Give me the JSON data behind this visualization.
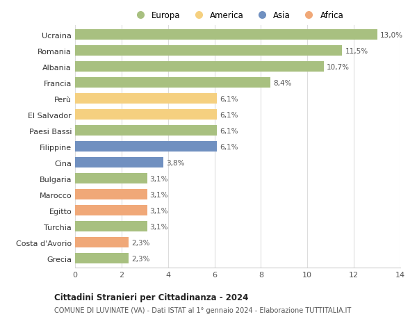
{
  "countries": [
    "Ucraina",
    "Romania",
    "Albania",
    "Francia",
    "Perù",
    "El Salvador",
    "Paesi Bassi",
    "Filippine",
    "Cina",
    "Bulgaria",
    "Marocco",
    "Egitto",
    "Turchia",
    "Costa d'Avorio",
    "Grecia"
  ],
  "values": [
    13.0,
    11.5,
    10.7,
    8.4,
    6.1,
    6.1,
    6.1,
    6.1,
    3.8,
    3.1,
    3.1,
    3.1,
    3.1,
    2.3,
    2.3
  ],
  "labels": [
    "13,0%",
    "11,5%",
    "10,7%",
    "8,4%",
    "6,1%",
    "6,1%",
    "6,1%",
    "6,1%",
    "3,8%",
    "3,1%",
    "3,1%",
    "3,1%",
    "3,1%",
    "2,3%",
    "2,3%"
  ],
  "continents": [
    "Europa",
    "Europa",
    "Europa",
    "Europa",
    "America",
    "America",
    "Europa",
    "Asia",
    "Asia",
    "Europa",
    "Africa",
    "Africa",
    "Europa",
    "Africa",
    "Europa"
  ],
  "colors": {
    "Europa": "#a8c080",
    "America": "#f5d080",
    "Asia": "#7090c0",
    "Africa": "#f0a878"
  },
  "legend_order": [
    "Europa",
    "America",
    "Asia",
    "Africa"
  ],
  "title1": "Cittadini Stranieri per Cittadinanza - 2024",
  "title2": "COMUNE DI LUVINATE (VA) - Dati ISTAT al 1° gennaio 2024 - Elaborazione TUTTITALIA.IT",
  "xlim": [
    0,
    14
  ],
  "xticks": [
    0,
    2,
    4,
    6,
    8,
    10,
    12,
    14
  ],
  "background_color": "#ffffff"
}
